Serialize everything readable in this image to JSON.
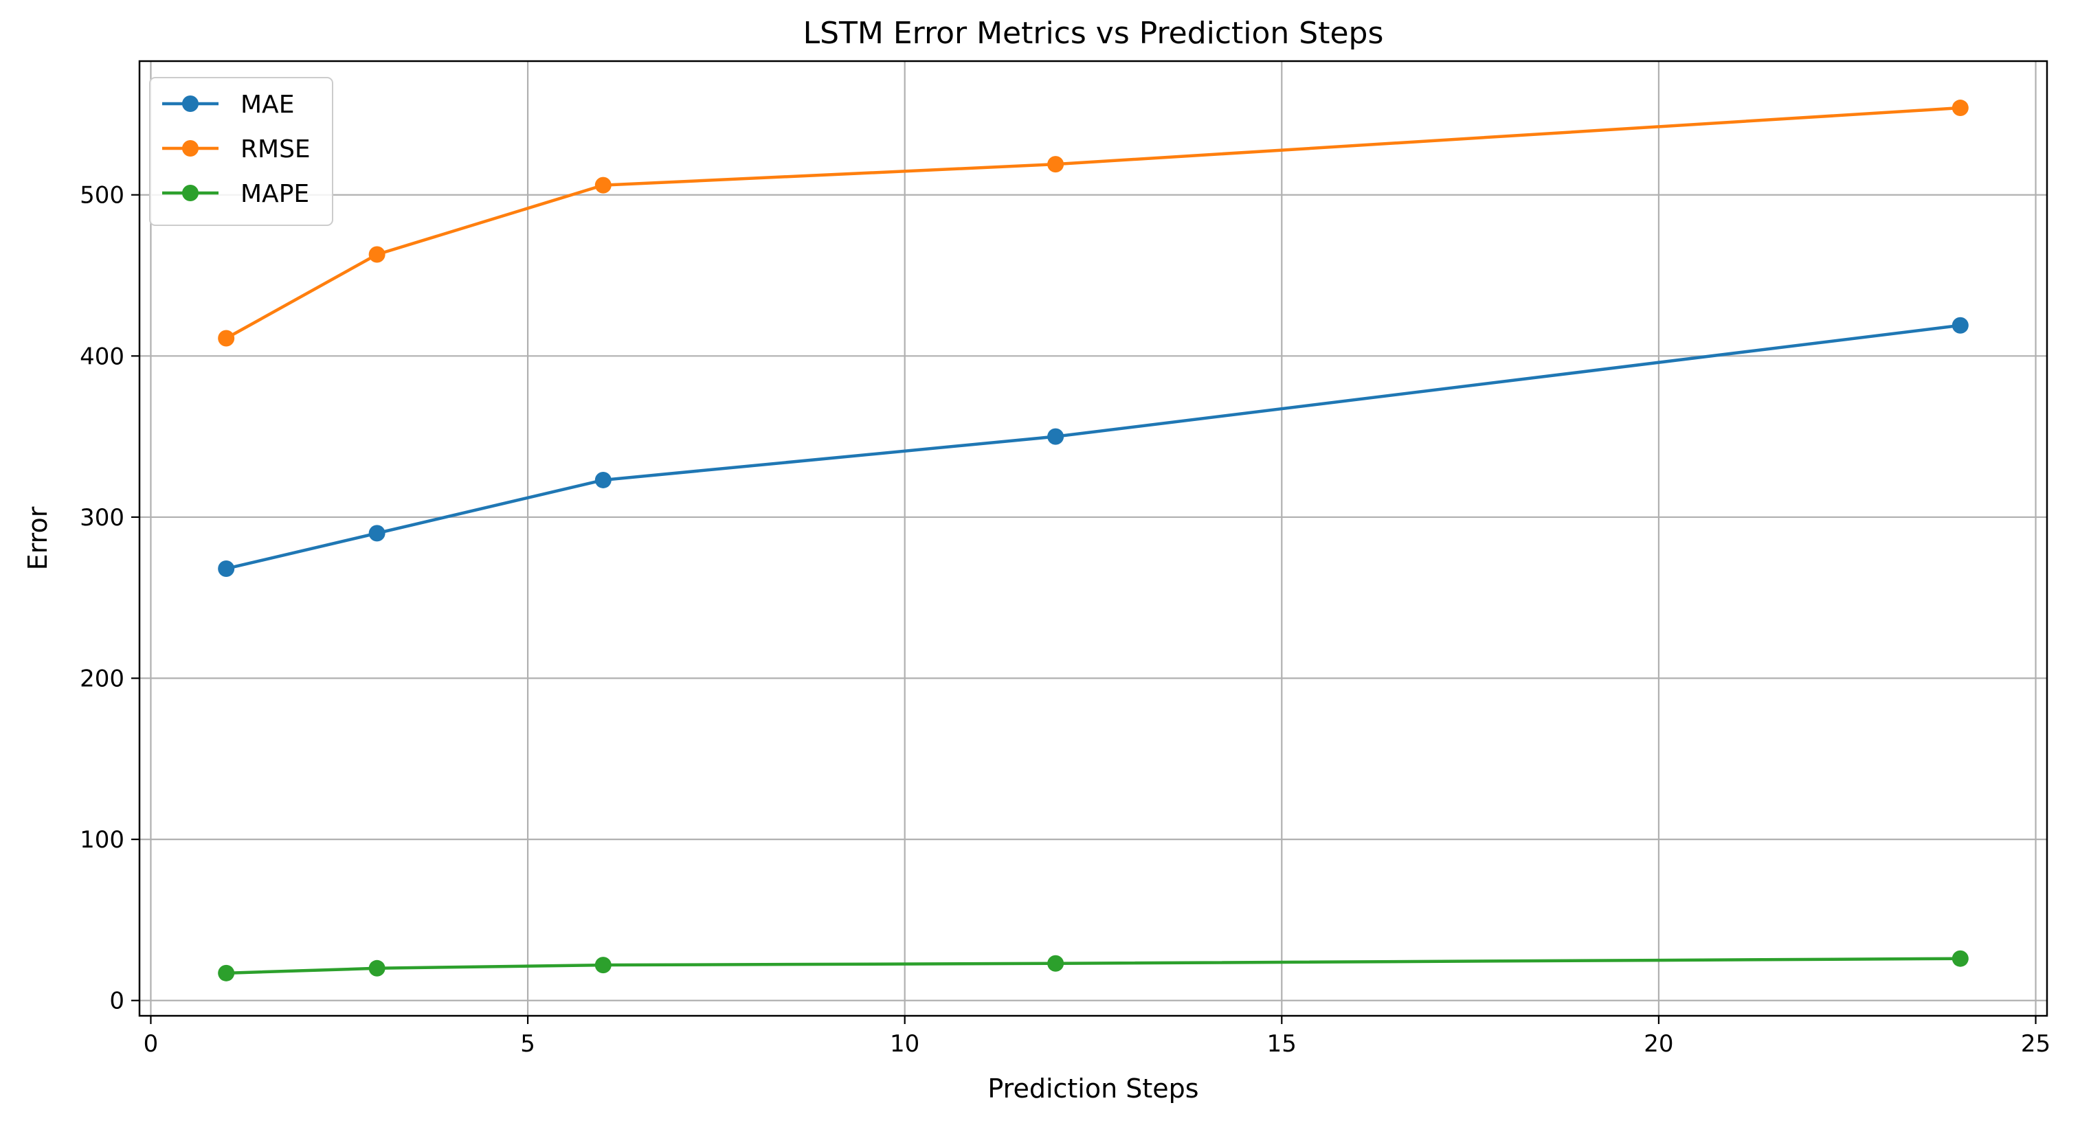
{
  "chart_data": {
    "type": "line",
    "title": "LSTM Error Metrics vs Prediction Steps",
    "xlabel": "Prediction Steps",
    "ylabel": "Error",
    "x": [
      1,
      3,
      6,
      12,
      24
    ],
    "xlim": [
      -0.15,
      25.15
    ],
    "ylim": [
      -9.5,
      583
    ],
    "xticks": [
      0,
      5,
      10,
      15,
      20,
      25
    ],
    "xtick_labels": [
      "0",
      "5",
      "10",
      "15",
      "20",
      "25"
    ],
    "yticks": [
      0,
      100,
      200,
      300,
      400,
      500
    ],
    "ytick_labels": [
      "0",
      "100",
      "200",
      "300",
      "400",
      "500"
    ],
    "grid": true,
    "legend_position": "top-left",
    "series": [
      {
        "name": "MAE",
        "color": "#1f77b4",
        "values": [
          268,
          290,
          323,
          350,
          419
        ]
      },
      {
        "name": "RMSE",
        "color": "#ff7f0e",
        "values": [
          411,
          463,
          506,
          519,
          554
        ]
      },
      {
        "name": "MAPE",
        "color": "#2ca02c",
        "values": [
          17,
          20,
          22,
          23,
          26
        ]
      }
    ]
  }
}
